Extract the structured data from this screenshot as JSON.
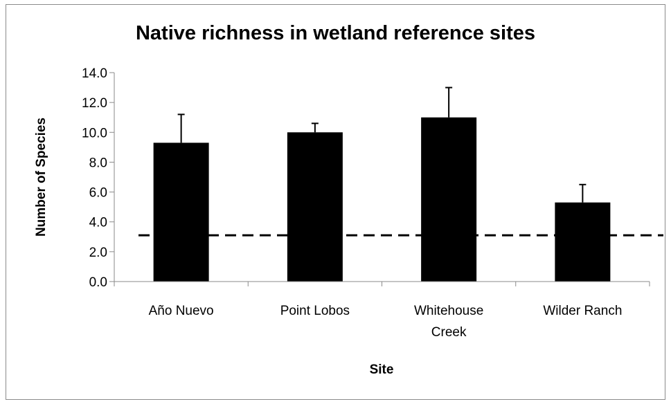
{
  "chart_data": {
    "type": "bar",
    "title": "Native richness in wetland reference sites",
    "xlabel": "Site",
    "ylabel": "Number of Species",
    "categories": [
      [
        "Año Nuevo"
      ],
      [
        "Point Lobos"
      ],
      [
        "Whitehouse",
        "Creek"
      ],
      [
        "Wilder Ranch"
      ]
    ],
    "values": [
      9.3,
      10.0,
      11.0,
      5.3
    ],
    "error_upper": [
      1.9,
      0.6,
      2.0,
      1.2
    ],
    "ylim": [
      0,
      14
    ],
    "yticks": [
      "0.0",
      "2.0",
      "4.0",
      "6.0",
      "8.0",
      "10.0",
      "12.0",
      "14.0"
    ],
    "reference_line": {
      "value": 3.1,
      "style": "dashed"
    },
    "bar_color": "#000000",
    "grid": false,
    "legend": "none"
  }
}
